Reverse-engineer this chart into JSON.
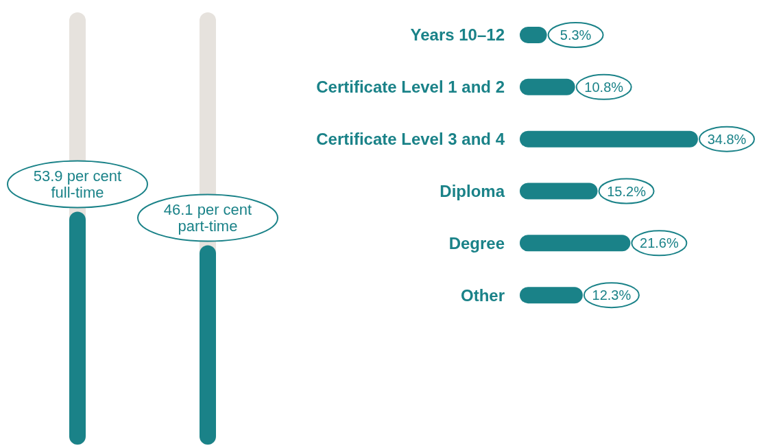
{
  "chart_data": [
    {
      "type": "bar",
      "categories": [
        null,
        null
      ],
      "values": [
        53.9,
        46.1
      ],
      "value_labels": [
        "53.9 per cent full-time",
        "46.1 per cent part-time"
      ],
      "color": "#1a8288",
      "ylim": [
        0,
        100
      ],
      "tick_labels": false,
      "legend": false
    },
    {
      "type": "bar",
      "orientation": "horizontal",
      "categories": [
        "Years 10–12",
        "Certificate Level 1 and 2",
        "Certificate Level 3 and 4",
        "Diploma",
        "Degree",
        "Other"
      ],
      "values": [
        5.3,
        10.8,
        34.8,
        15.2,
        21.6,
        12.3
      ],
      "value_labels": [
        "5.3%",
        "10.8%",
        "34.8%",
        "15.2%",
        "21.6%",
        "12.3%"
      ],
      "color": "#1a8288",
      "tick_labels": "y",
      "legend": false
    }
  ]
}
